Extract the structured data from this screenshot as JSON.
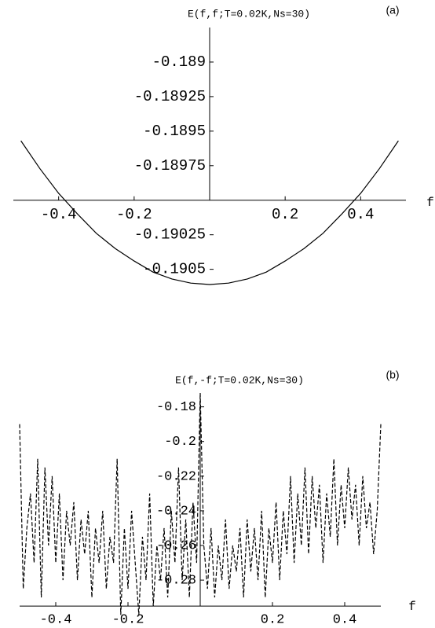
{
  "chart_data": [
    {
      "type": "line",
      "title": "E(f,f;T=0.02K,Ns=30)",
      "panel_label": "(a)",
      "x_label": "f",
      "x": [
        -0.5,
        -0.45,
        -0.4,
        -0.35,
        -0.3,
        -0.25,
        -0.2,
        -0.15,
        -0.1,
        -0.05,
        0,
        0.05,
        0.1,
        0.15,
        0.2,
        0.25,
        0.3,
        0.35,
        0.4,
        0.45,
        0.5
      ],
      "values": [
        -0.18957,
        -0.18977,
        -0.18995,
        -0.1901,
        -0.19024,
        -0.19035,
        -0.19044,
        -0.19052,
        -0.19057,
        -0.1906,
        -0.19061,
        -0.1906,
        -0.19057,
        -0.19052,
        -0.19044,
        -0.19035,
        -0.19024,
        -0.1901,
        -0.18995,
        -0.18977,
        -0.18957
      ],
      "color": "#000000",
      "line_style": "solid",
      "xlim": [
        -0.52,
        0.52
      ],
      "ylim": [
        -0.19065,
        -0.18875
      ],
      "axes_origin": [
        0,
        -0.19
      ],
      "xticks": [
        -0.4,
        -0.2,
        0.2,
        0.4
      ],
      "yticks": [
        -0.189,
        -0.18925,
        -0.1895,
        -0.18975,
        -0.19025,
        -0.1905
      ]
    },
    {
      "type": "line",
      "title": "E(f,-f;T=0.02K,Ns=30)",
      "panel_label": "(b)",
      "x_label": "f",
      "x": [
        -0.5,
        -0.49,
        -0.48,
        -0.47,
        -0.46,
        -0.45,
        -0.44,
        -0.43,
        -0.42,
        -0.41,
        -0.4,
        -0.39,
        -0.38,
        -0.37,
        -0.36,
        -0.35,
        -0.34,
        -0.33,
        -0.32,
        -0.31,
        -0.3,
        -0.29,
        -0.28,
        -0.27,
        -0.26,
        -0.25,
        -0.24,
        -0.23,
        -0.22,
        -0.21,
        -0.2,
        -0.19,
        -0.18,
        -0.17,
        -0.16,
        -0.15,
        -0.14,
        -0.13,
        -0.12,
        -0.11,
        -0.1,
        -0.09,
        -0.08,
        -0.07,
        -0.06,
        -0.05,
        -0.04,
        -0.03,
        -0.02,
        -0.01,
        0,
        0.01,
        0.02,
        0.03,
        0.04,
        0.05,
        0.06,
        0.07,
        0.08,
        0.09,
        0.1,
        0.11,
        0.12,
        0.13,
        0.14,
        0.15,
        0.16,
        0.17,
        0.18,
        0.19,
        0.2,
        0.21,
        0.22,
        0.23,
        0.24,
        0.25,
        0.26,
        0.27,
        0.28,
        0.29,
        0.3,
        0.31,
        0.32,
        0.33,
        0.34,
        0.35,
        0.36,
        0.37,
        0.38,
        0.39,
        0.4,
        0.41,
        0.42,
        0.43,
        0.44,
        0.45,
        0.46,
        0.47,
        0.48,
        0.49,
        0.5
      ],
      "values": [
        -0.19,
        -0.285,
        -0.25,
        -0.23,
        -0.27,
        -0.21,
        -0.29,
        -0.215,
        -0.26,
        -0.22,
        -0.27,
        -0.23,
        -0.28,
        -0.24,
        -0.26,
        -0.235,
        -0.28,
        -0.245,
        -0.265,
        -0.24,
        -0.29,
        -0.25,
        -0.27,
        -0.24,
        -0.285,
        -0.255,
        -0.27,
        -0.21,
        -0.3,
        -0.25,
        -0.285,
        -0.24,
        -0.27,
        -0.3,
        -0.255,
        -0.28,
        -0.23,
        -0.295,
        -0.26,
        -0.28,
        -0.25,
        -0.29,
        -0.24,
        -0.27,
        -0.215,
        -0.28,
        -0.245,
        -0.29,
        -0.235,
        -0.27,
        -0.172,
        -0.26,
        -0.285,
        -0.25,
        -0.29,
        -0.26,
        -0.28,
        -0.245,
        -0.285,
        -0.26,
        -0.275,
        -0.25,
        -0.29,
        -0.245,
        -0.275,
        -0.25,
        -0.28,
        -0.24,
        -0.29,
        -0.25,
        -0.27,
        -0.235,
        -0.28,
        -0.24,
        -0.265,
        -0.22,
        -0.27,
        -0.23,
        -0.26,
        -0.215,
        -0.265,
        -0.22,
        -0.25,
        -0.225,
        -0.27,
        -0.23,
        -0.255,
        -0.21,
        -0.26,
        -0.225,
        -0.25,
        -0.215,
        -0.245,
        -0.225,
        -0.26,
        -0.22,
        -0.25,
        -0.235,
        -0.265,
        -0.24,
        -0.19
      ],
      "color": "#000000",
      "line_style": "dashed",
      "xlim": [
        -0.5,
        0.5
      ],
      "ylim": [
        -0.304,
        -0.172
      ],
      "axes_origin": [
        0,
        -0.295
      ],
      "xticks": [
        -0.4,
        -0.2,
        0.2,
        0.4
      ],
      "yticks": [
        -0.18,
        -0.2,
        -0.22,
        -0.24,
        -0.26,
        -0.28
      ]
    }
  ]
}
